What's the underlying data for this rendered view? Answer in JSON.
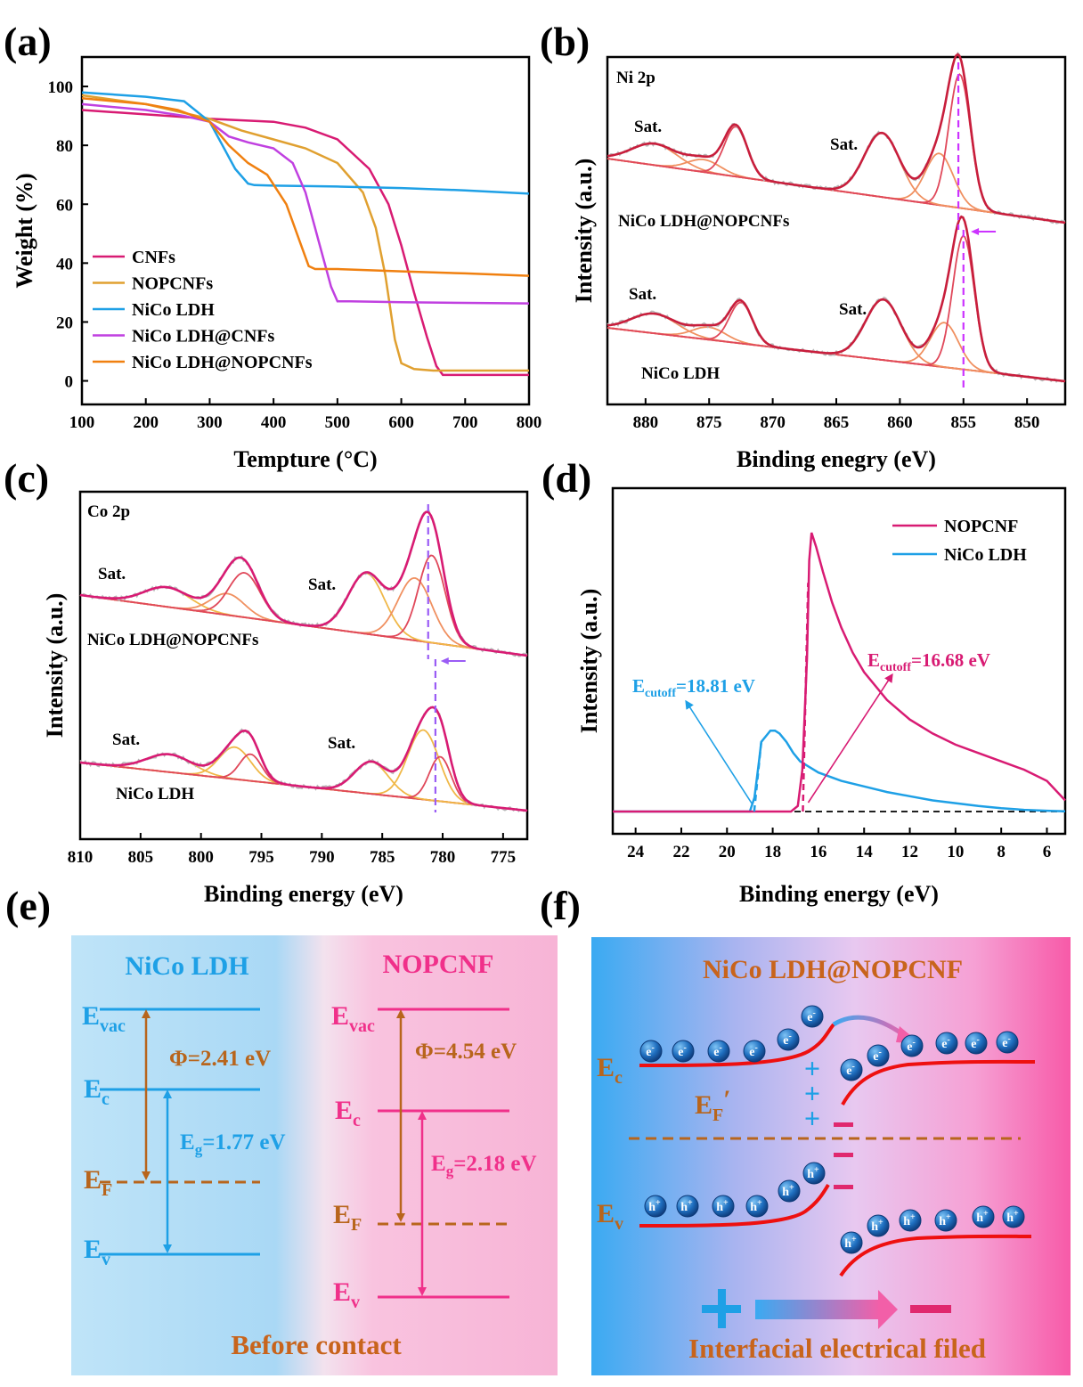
{
  "panels": {
    "a": "(a)",
    "b": "(b)",
    "c": "(c)",
    "d": "(d)",
    "e": "(e)",
    "f": "(f)"
  },
  "colors": {
    "magenta": "#d81b73",
    "orange_yellow": "#e0a030",
    "blue": "#1ea0e6",
    "violet": "#c040e0",
    "orange": "#f08010",
    "brown": "#b8651c",
    "pink": "#f0308a",
    "red_fit": "#c81e3c",
    "peak_orange": "#f09060",
    "dash_violet": "#cc33ff"
  },
  "chart_data": [
    {
      "id": "a",
      "type": "line",
      "xlabel": "Tempture (°C)",
      "ylabel": "Weight (%)",
      "xlim": [
        100,
        800
      ],
      "ylim": [
        -8,
        110
      ],
      "xticks": [
        100,
        200,
        300,
        400,
        500,
        600,
        700,
        800
      ],
      "yticks": [
        0,
        20,
        40,
        60,
        80,
        100
      ],
      "series": [
        {
          "name": "CNFs",
          "color": "#d81b73",
          "x": [
            100,
            200,
            300,
            400,
            450,
            500,
            550,
            580,
            600,
            620,
            640,
            655,
            665,
            700,
            800
          ],
          "y": [
            92,
            90.5,
            89,
            88,
            86,
            82,
            72,
            60,
            46,
            30,
            15,
            5,
            2,
            2,
            2
          ]
        },
        {
          "name": "NOPCNFs",
          "color": "#e0a030",
          "x": [
            100,
            200,
            300,
            350,
            400,
            450,
            500,
            540,
            560,
            575,
            590,
            600,
            620,
            650,
            800
          ],
          "y": [
            97,
            94,
            89,
            85,
            82,
            79,
            74,
            64,
            52,
            36,
            14,
            6,
            4,
            3.5,
            3.5
          ]
        },
        {
          "name": "NiCo LDH",
          "color": "#1ea0e6",
          "x": [
            100,
            200,
            260,
            300,
            320,
            340,
            360,
            370,
            400,
            500,
            600,
            700,
            800
          ],
          "y": [
            98,
            96.5,
            95,
            88,
            80,
            72,
            67,
            66.5,
            66.3,
            66,
            65.5,
            64.7,
            63.6
          ]
        },
        {
          "name": "NiCo LDH@CNFs",
          "color": "#c040e0",
          "x": [
            100,
            200,
            260,
            300,
            330,
            360,
            400,
            430,
            450,
            470,
            490,
            500,
            520,
            600,
            800
          ],
          "y": [
            94,
            92,
            90,
            88,
            83,
            81,
            79,
            74,
            64,
            48,
            32,
            27,
            27,
            26.7,
            26.3
          ]
        },
        {
          "name": "NiCo LDH@NOPCNFs",
          "color": "#f08010",
          "x": [
            100,
            200,
            250,
            300,
            330,
            360,
            390,
            420,
            440,
            455,
            465,
            500,
            600,
            700,
            800
          ],
          "y": [
            96,
            94,
            92,
            88,
            80,
            74,
            70,
            60,
            48,
            39,
            38,
            38,
            37.2,
            36.5,
            35.7
          ]
        }
      ]
    },
    {
      "id": "b",
      "type": "line",
      "title": "Ni 2p",
      "xlabel": "Binding enegry (eV)",
      "ylabel": "Intensity (a.u.)",
      "xlim": [
        883,
        847
      ],
      "xticks": [
        880,
        875,
        870,
        865,
        860,
        855,
        850
      ],
      "annotations": [
        "Sat.",
        "Sat.",
        "Sat.",
        "Sat."
      ],
      "series": [
        {
          "name": "NiCo LDH@NOPCNFs",
          "peaks_eV": [
            879.3,
            875.4,
            872.9,
            861.4,
            856.9,
            855.3
          ],
          "dashed_line_eV": 855.4
        },
        {
          "name": "NiCo LDH",
          "peaks_eV": [
            879.3,
            875.0,
            872.5,
            861.3,
            856.5,
            855.0
          ],
          "dashed_line_eV": 855.0
        }
      ]
    },
    {
      "id": "c",
      "type": "line",
      "title": "Co 2p",
      "xlabel": "Binding energy (eV)",
      "ylabel": "Intensity (a.u.)",
      "xlim": [
        810,
        773
      ],
      "xticks": [
        810,
        805,
        800,
        795,
        790,
        785,
        780,
        775
      ],
      "annotations": [
        "Sat.",
        "Sat.",
        "Sat.",
        "Sat."
      ],
      "series": [
        {
          "name": "NiCo LDH@NOPCNFs",
          "peaks_eV": [
            802.8,
            797.8,
            796.4,
            786.3,
            782.3,
            780.9
          ],
          "dashed_line_eV": 781.2
        },
        {
          "name": "NiCo LDH",
          "peaks_eV": [
            802.6,
            797.2,
            795.9,
            785.9,
            781.6,
            780.2
          ],
          "dashed_line_eV": 780.6
        }
      ]
    },
    {
      "id": "d",
      "type": "line",
      "xlabel": "Binding energy (eV)",
      "ylabel": "Intensity (a.u.)",
      "xlim": [
        25,
        5.2
      ],
      "xticks": [
        24,
        22,
        20,
        18,
        16,
        14,
        12,
        10,
        8,
        6
      ],
      "series": [
        {
          "name": "NOPCNF",
          "color": "#d81b73",
          "x": [
            25,
            17.2,
            16.9,
            16.7,
            16.5,
            16.4,
            16.3,
            16.1,
            15.8,
            15.4,
            15,
            14.5,
            14,
            13,
            12,
            11,
            10,
            9,
            8,
            7,
            6,
            5.2
          ],
          "y": [
            0,
            0,
            0.02,
            0.15,
            0.55,
            0.9,
            1.0,
            0.95,
            0.86,
            0.75,
            0.66,
            0.57,
            0.5,
            0.4,
            0.33,
            0.28,
            0.24,
            0.21,
            0.18,
            0.15,
            0.11,
            0.04
          ]
        },
        {
          "name": "NiCo LDH",
          "color": "#1ea0e6",
          "x": [
            25,
            19.0,
            18.8,
            18.6,
            18.5,
            18.3,
            18.1,
            17.9,
            17.7,
            17.4,
            17.1,
            16.8,
            16.4,
            16,
            15,
            14,
            13,
            12,
            11,
            10,
            9,
            8,
            7,
            6,
            5.2
          ],
          "y": [
            0,
            0,
            0.05,
            0.18,
            0.25,
            0.27,
            0.29,
            0.29,
            0.28,
            0.25,
            0.21,
            0.18,
            0.16,
            0.14,
            0.11,
            0.09,
            0.07,
            0.055,
            0.04,
            0.03,
            0.02,
            0.012,
            0.006,
            0.003,
            0.001
          ]
        }
      ],
      "annotations": [
        {
          "label": "E",
          "sub": "cutoff",
          "value": "=18.81 eV",
          "x": 18.81
        },
        {
          "label": "E",
          "sub": "cutoff",
          "value": "=16.68 eV",
          "x": 16.68
        }
      ]
    }
  ],
  "panel_e": {
    "left_title": "NiCo LDH",
    "right_title": "NOPCNF",
    "left_levels": {
      "vac": "E",
      "vac_sub": "vac",
      "c": "E",
      "c_sub": "c",
      "f": "E",
      "f_sub": "F",
      "v": "E",
      "v_sub": "v"
    },
    "right_levels": {
      "vac": "E",
      "vac_sub": "vac",
      "c": "E",
      "c_sub": "c",
      "f": "E",
      "f_sub": "F",
      "v": "E",
      "v_sub": "v"
    },
    "left_phi": "Φ=2.41 eV",
    "left_eg_e": "E",
    "left_eg_sub": "g",
    "left_eg_val": "=1.77 eV",
    "right_phi": "Φ=4.54 eV",
    "right_eg_e": "E",
    "right_eg_sub": "g",
    "right_eg_val": "=2.18 eV",
    "caption": "Before contact"
  },
  "panel_f": {
    "title": "NiCo LDH@NOPCNF",
    "ec": "E",
    "ec_sub": "c",
    "ef": "E",
    "ef_sub": "F",
    "ef_prime": "′",
    "ev": "E",
    "ev_sub": "v",
    "electron": "e",
    "electron_sup": "-",
    "hole": "h",
    "hole_sup": "+",
    "plus": "+",
    "minus": "−",
    "caption": "Interfacial electrical filed"
  }
}
